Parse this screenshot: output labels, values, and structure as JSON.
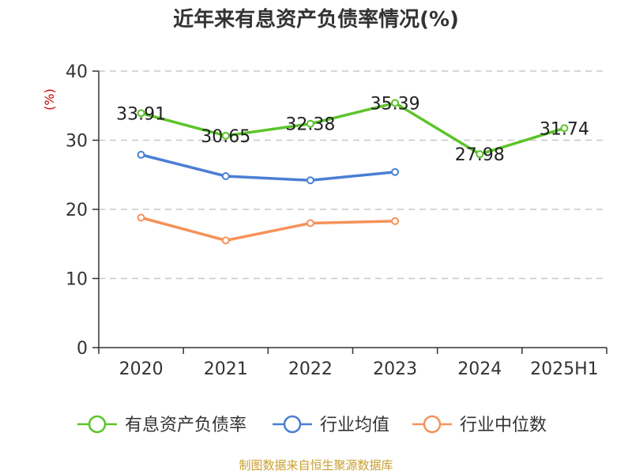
{
  "chart_data": {
    "type": "line",
    "title": "近年来有息资产负债率情况(%)",
    "ylabel": "(%)",
    "categories": [
      "2020",
      "2021",
      "2022",
      "2023",
      "2024",
      "2025H1"
    ],
    "ylim": [
      0,
      40
    ],
    "yticks": [
      "0",
      "10",
      "20",
      "30",
      "40"
    ],
    "grid": true,
    "legend_position": "bottom",
    "series": [
      {
        "name": "有息资产负债率",
        "color": "#5cc42a",
        "values": [
          33.91,
          30.65,
          32.38,
          35.39,
          27.98,
          31.74
        ],
        "labels": [
          "33.91",
          "30.65",
          "32.38",
          "35.39",
          "27.98",
          "31.74"
        ]
      },
      {
        "name": "行业均值",
        "color": "#4a7fd4",
        "values": [
          27.9,
          24.8,
          24.2,
          25.4,
          null,
          null
        ]
      },
      {
        "name": "行业中位数",
        "color": "#f5925a",
        "values": [
          18.8,
          15.5,
          18.0,
          18.3,
          null,
          null
        ]
      }
    ],
    "source": "制图数据来自恒生聚源数据库"
  }
}
